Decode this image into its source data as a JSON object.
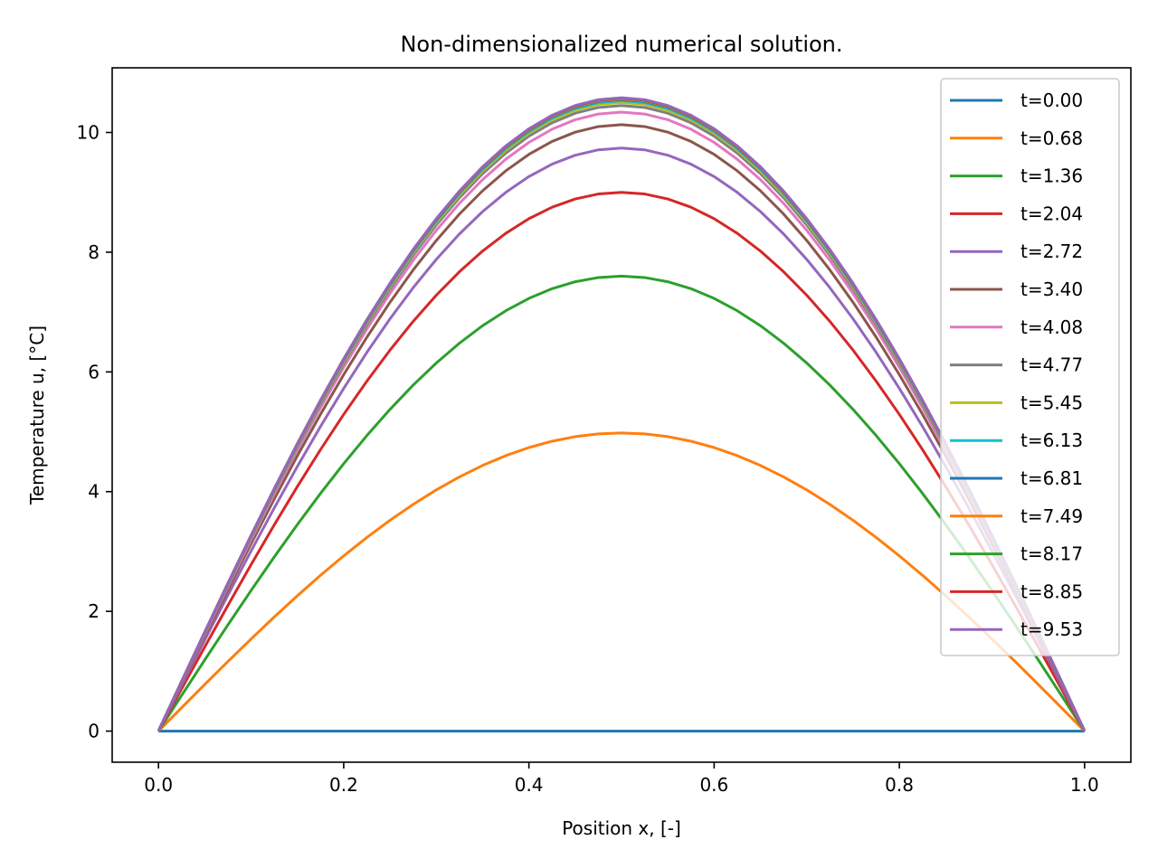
{
  "chart_data": {
    "type": "line",
    "title": "Non-dimensionalized numerical solution.",
    "xlabel": "Position x, [-]",
    "ylabel": "Temperature u, [°C]",
    "xlim": [
      -0.05,
      1.05
    ],
    "ylim": [
      -0.52,
      11.08
    ],
    "xticks": [
      0.0,
      0.2,
      0.4,
      0.6,
      0.8,
      1.0
    ],
    "xtick_labels": [
      "0.0",
      "0.2",
      "0.4",
      "0.6",
      "0.8",
      "1.0"
    ],
    "yticks": [
      0,
      2,
      4,
      6,
      8,
      10
    ],
    "ytick_labels": [
      "0",
      "2",
      "4",
      "6",
      "8",
      "10"
    ],
    "grid": false,
    "legend_position": "top-right",
    "x_points": 41,
    "curve_shape": "sin(pi*x)",
    "series": [
      {
        "name": "t=0.00",
        "color": "#1f77b4",
        "peak": 0.0
      },
      {
        "name": "t=0.68",
        "color": "#ff7f0e",
        "peak": 4.98
      },
      {
        "name": "t=1.36",
        "color": "#2ca02c",
        "peak": 7.6
      },
      {
        "name": "t=2.04",
        "color": "#d62728",
        "peak": 9.0
      },
      {
        "name": "t=2.72",
        "color": "#9467bd",
        "peak": 9.74
      },
      {
        "name": "t=3.40",
        "color": "#8c564b",
        "peak": 10.13
      },
      {
        "name": "t=4.08",
        "color": "#e377c2",
        "peak": 10.34
      },
      {
        "name": "t=4.77",
        "color": "#7f7f7f",
        "peak": 10.45
      },
      {
        "name": "t=5.45",
        "color": "#bcbd22",
        "peak": 10.5
      },
      {
        "name": "t=6.13",
        "color": "#17becf",
        "peak": 10.53
      },
      {
        "name": "t=6.81",
        "color": "#1f77b4",
        "peak": 10.55
      },
      {
        "name": "t=7.49",
        "color": "#ff7f0e",
        "peak": 10.56
      },
      {
        "name": "t=8.17",
        "color": "#2ca02c",
        "peak": 10.57
      },
      {
        "name": "t=8.85",
        "color": "#d62728",
        "peak": 10.575
      },
      {
        "name": "t=9.53",
        "color": "#9467bd",
        "peak": 10.58
      }
    ]
  }
}
